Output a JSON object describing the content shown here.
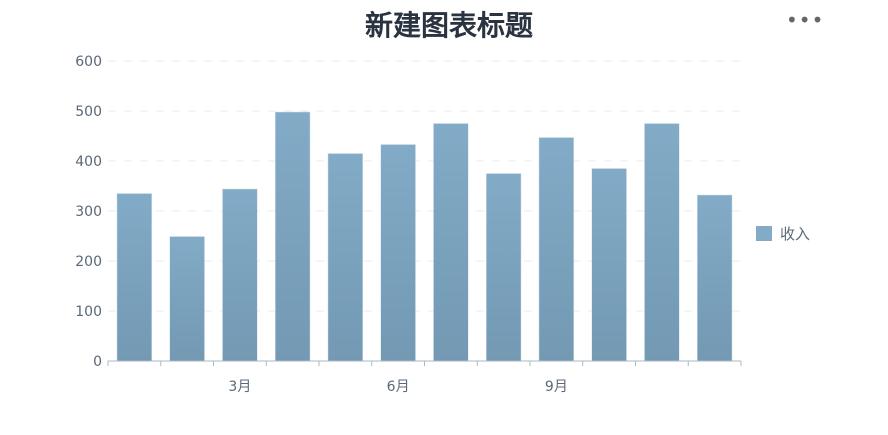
{
  "chart_data": {
    "type": "bar",
    "title": "新建图表标题",
    "x_tick_labels": [
      "",
      "",
      "3月",
      "",
      "",
      "6月",
      "",
      "",
      "9月",
      "",
      "",
      ""
    ],
    "series": [
      {
        "name": "收入",
        "values": [
          335,
          249,
          344,
          498,
          415,
          433,
          475,
          375,
          447,
          385,
          475,
          332
        ]
      }
    ],
    "ylim": [
      0,
      600
    ],
    "yticks": [
      0,
      100,
      200,
      300,
      400,
      500,
      600
    ],
    "grid": true,
    "legend": "right",
    "colors": {
      "bar_top": "#82abc7",
      "bar_bottom": "#7399b3",
      "axis": "#a9b8c6",
      "grid": "#e6eaee",
      "text": "#5a6878"
    }
  },
  "toolbar": {
    "more_icon": "more-horizontal-icon",
    "more_label": "•••"
  }
}
